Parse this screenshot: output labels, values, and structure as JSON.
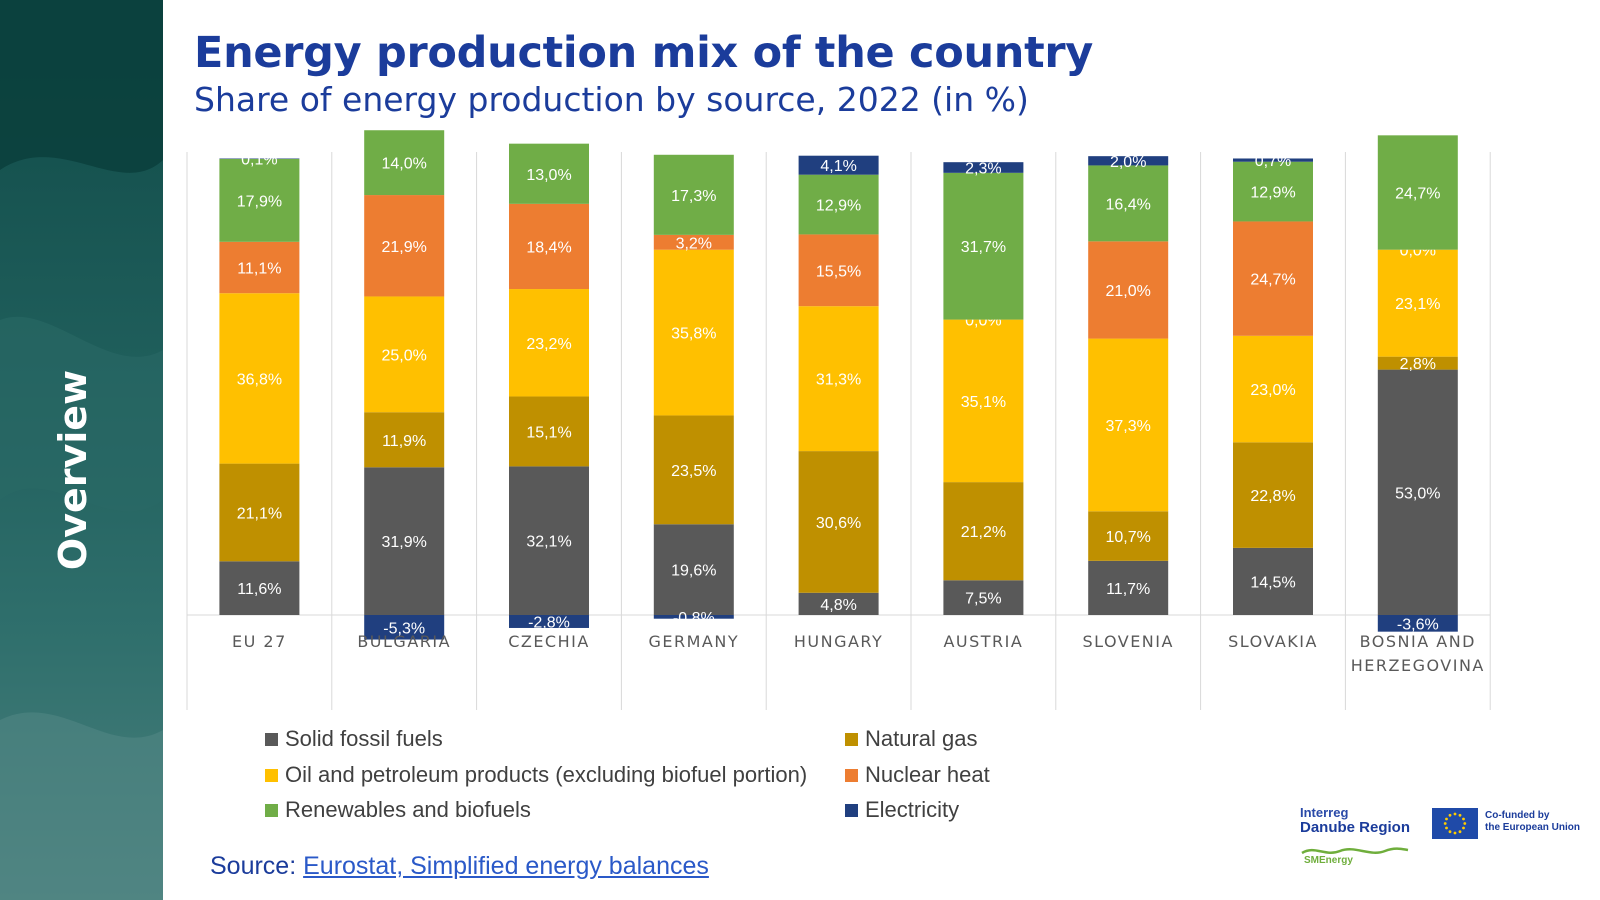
{
  "sidebar": {
    "label": "Overview"
  },
  "header": {
    "title": "Energy production mix of the country",
    "subtitle": "Share of energy production by source, 2022 (in %)"
  },
  "colors": {
    "title": "#1b3c9b",
    "solid_fossil": "#595959",
    "natural_gas": "#bf9000",
    "oil": "#ffc000",
    "nuclear": "#ed7d31",
    "renewables": "#70ad47",
    "electricity": "#203f7f"
  },
  "chart_data": {
    "type": "bar",
    "stacked": true,
    "categories": [
      "EU 27",
      "BULGARIA",
      "CZECHIA",
      "GERMANY",
      "HUNGARY",
      "AUSTRIA",
      "SLOVENIA",
      "SLOVAKIA",
      "BOSNIA AND HERZEGOVINA"
    ],
    "series": [
      {
        "name": "Solid fossil fuels",
        "color": "#595959",
        "values": [
          11.6,
          31.9,
          32.1,
          19.6,
          4.8,
          7.5,
          11.7,
          14.5,
          53.0
        ],
        "labels": [
          "11,6%",
          "31,9%",
          "32,1%",
          "19,6%",
          "4,8%",
          "7,5%",
          "11,7%",
          "14,5%",
          "53,0%"
        ]
      },
      {
        "name": "Natural gas",
        "color": "#bf9000",
        "values": [
          21.1,
          11.9,
          15.1,
          23.5,
          30.6,
          21.2,
          10.7,
          22.8,
          2.8
        ],
        "labels": [
          "21,1%",
          "11,9%",
          "15,1%",
          "23,5%",
          "30,6%",
          "21,2%",
          "10,7%",
          "22,8%",
          "2,8%"
        ]
      },
      {
        "name": "Oil and petroleum products (excluding biofuel portion)",
        "color": "#ffc000",
        "values": [
          36.8,
          25.0,
          23.2,
          35.8,
          31.3,
          35.1,
          37.3,
          23.0,
          23.1
        ],
        "labels": [
          "36,8%",
          "25,0%",
          "23,2%",
          "35,8%",
          "31,3%",
          "35,1%",
          "37,3%",
          "23,0%",
          "23,1%"
        ]
      },
      {
        "name": "Nuclear heat",
        "color": "#ed7d31",
        "values": [
          11.1,
          21.9,
          18.4,
          3.2,
          15.5,
          0.0,
          21.0,
          24.7,
          0.0
        ],
        "labels": [
          "11,1%",
          "21,9%",
          "18,4%",
          "3,2%",
          "15,5%",
          "0,0%",
          "21,0%",
          "24,7%",
          "0,0%"
        ]
      },
      {
        "name": "Renewables and biofuels",
        "color": "#70ad47",
        "values": [
          17.9,
          14.0,
          13.0,
          17.3,
          12.9,
          31.7,
          16.4,
          12.9,
          24.7
        ],
        "labels": [
          "17,9%",
          "14,0%",
          "13,0%",
          "17,3%",
          "12,9%",
          "31,7%",
          "16,4%",
          "12,9%",
          "24,7%"
        ]
      },
      {
        "name": "Electricity",
        "color": "#203f7f",
        "values": [
          0.1,
          -5.3,
          -2.8,
          -0.8,
          4.1,
          2.3,
          2.0,
          0.7,
          -3.6
        ],
        "labels": [
          "0,1%",
          "-5,3%",
          "-2,8%",
          "-0,8%",
          "4,1%",
          "2,3%",
          "2,0%",
          "0,7%",
          "-3,6%"
        ]
      }
    ],
    "ylim": [
      -5.3,
      100
    ],
    "grid": false,
    "legend_position": "bottom",
    "source_prefix": "Source: ",
    "source_link": "Eurostat, Simplified energy balances"
  },
  "logos": {
    "interreg_line1": "Interreg",
    "interreg_line2": "Danube Region",
    "eu_line1": "Co-funded by",
    "eu_line2": "the European Union",
    "smenergy": "SMEnergy"
  }
}
